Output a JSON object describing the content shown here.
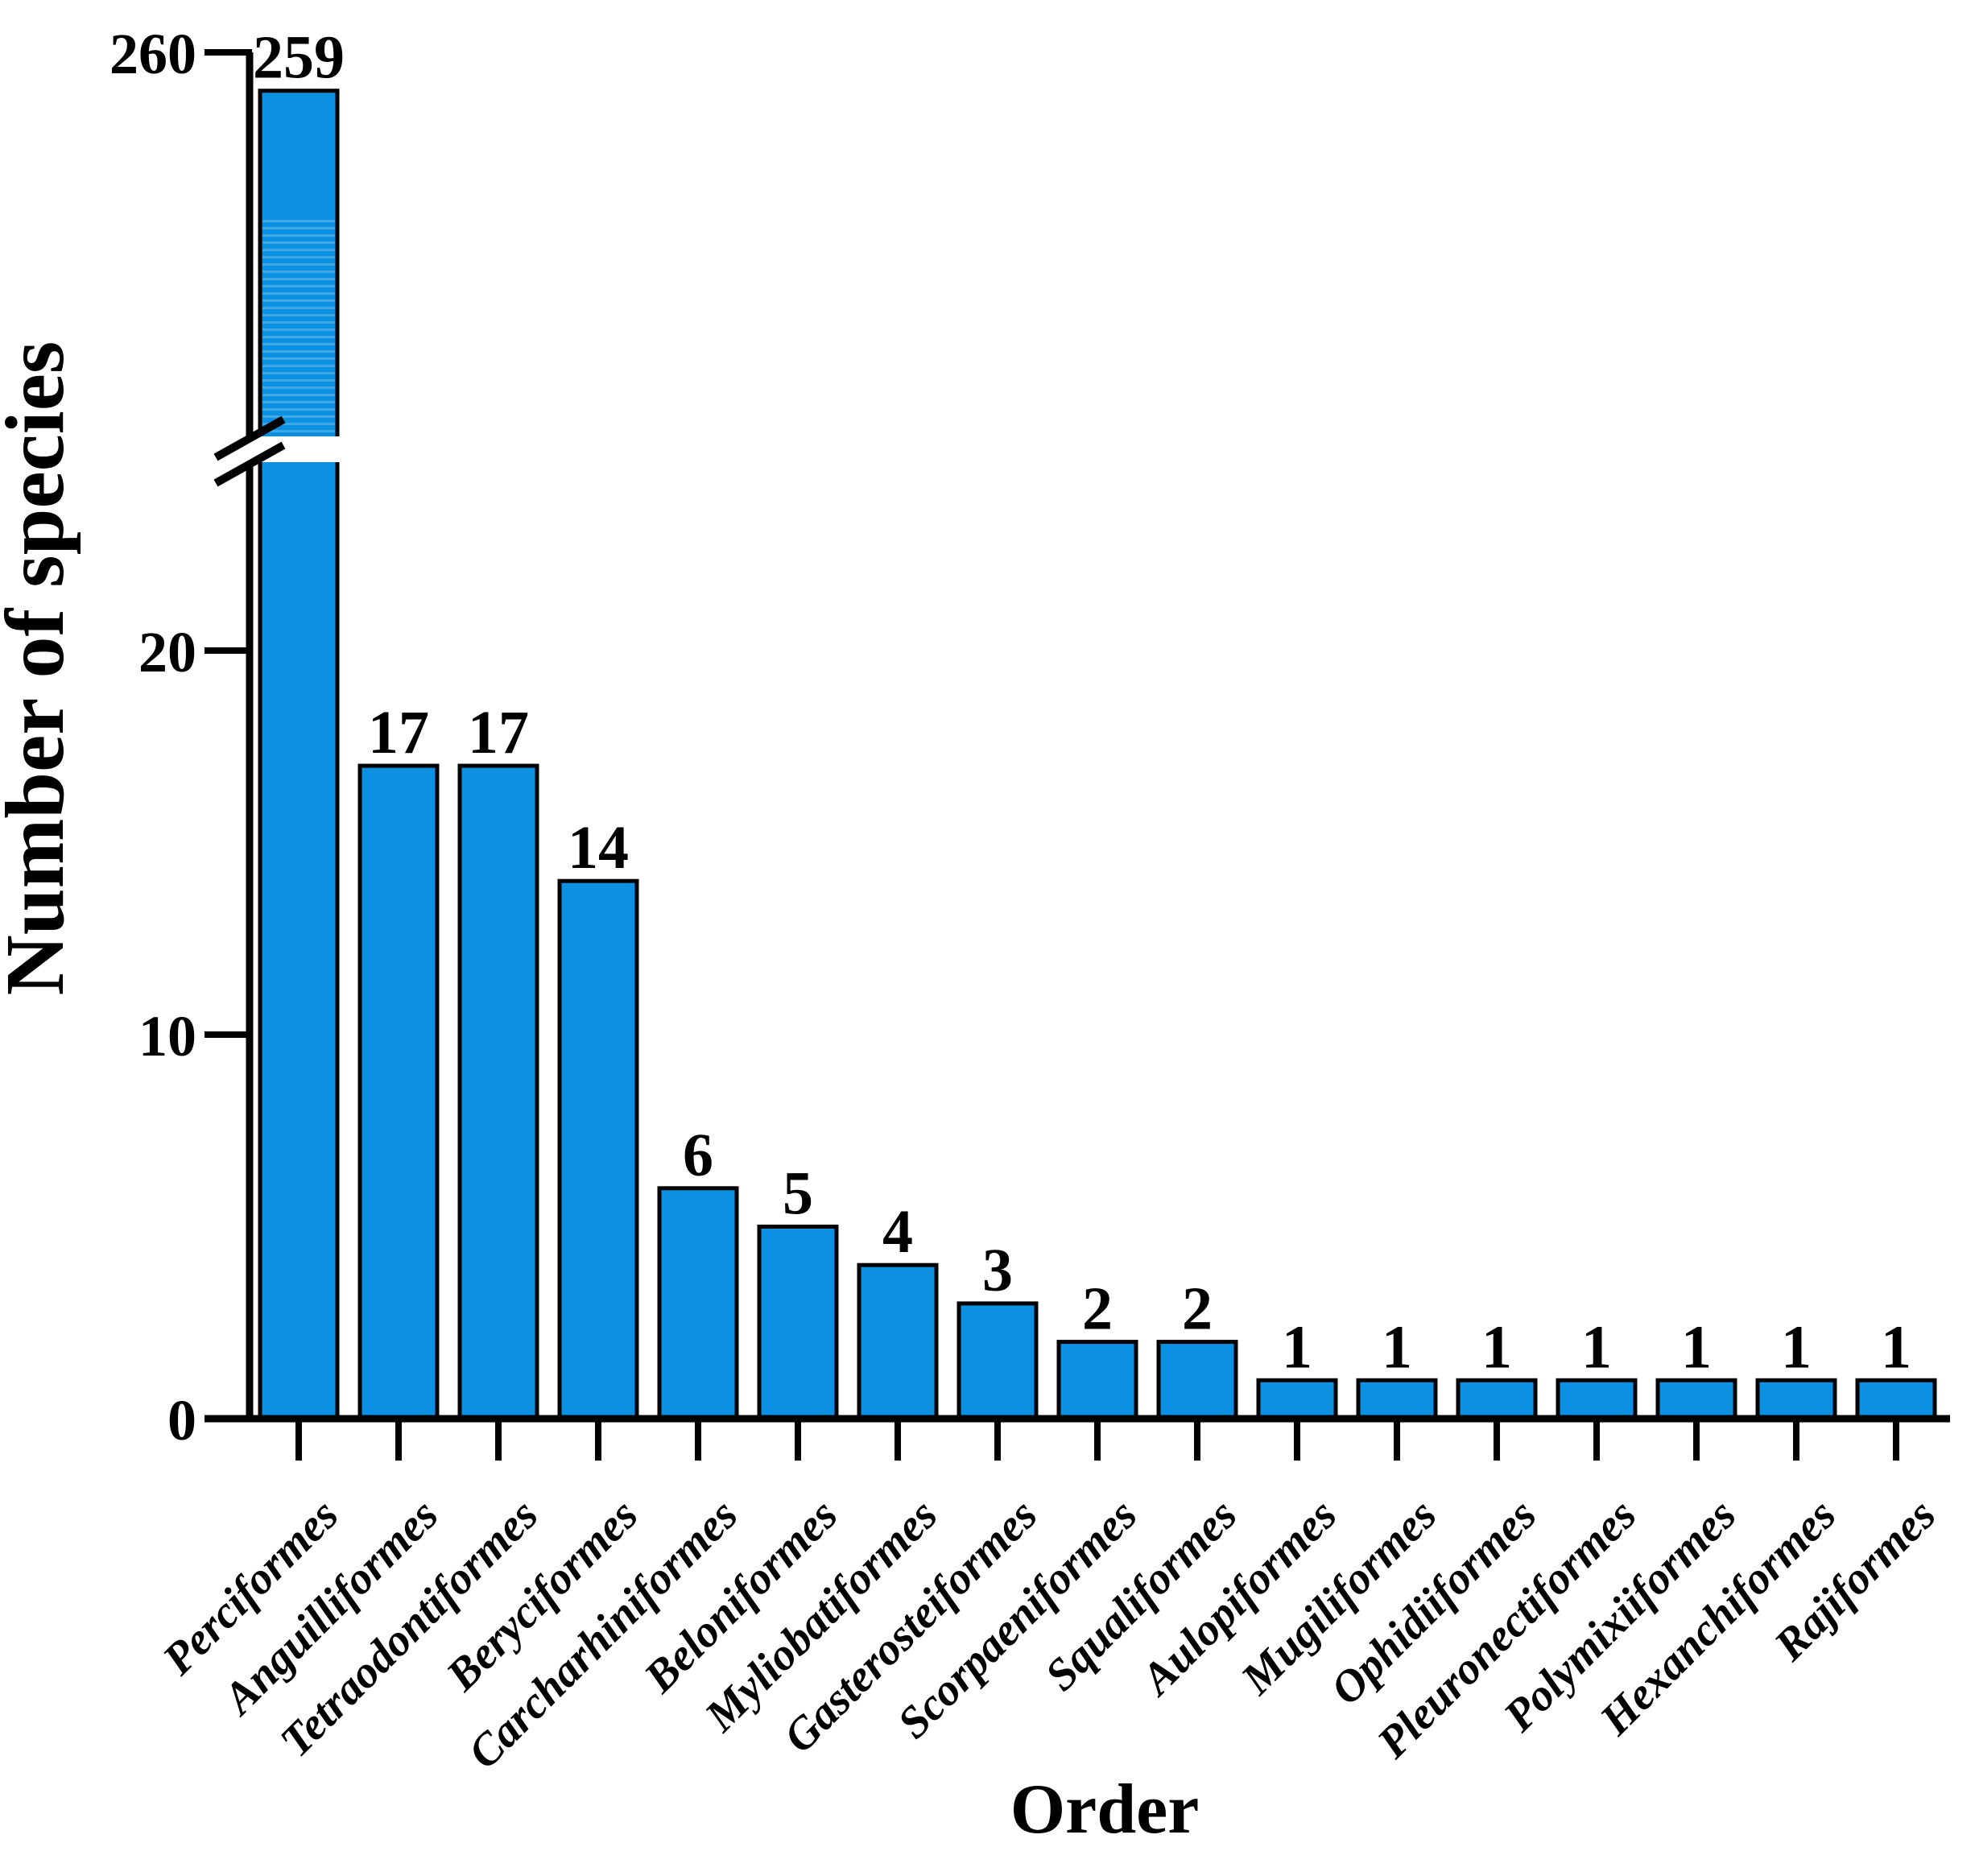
{
  "figure": {
    "background": "#ffffff"
  },
  "chart_data": {
    "type": "bar",
    "title": "",
    "xlabel": "Order",
    "ylabel": "Number of species",
    "categories": [
      "Perciformes",
      "Anguilliformes",
      "Tetraodontiformes",
      "Beryciformes",
      "Carcharhiniformes",
      "Beloniformes",
      "Myliobatiformes",
      "Gasterosteiformes",
      "Scorpaeniformes",
      "Squaliformes",
      "Aulopiformes",
      "Mugiliformes",
      "Ophidiiformes",
      "Pleuronectiformes",
      "Polymixiiformes",
      "Hexanchiformes",
      "Rajiformes"
    ],
    "values": [
      259,
      17,
      17,
      14,
      6,
      5,
      4,
      3,
      2,
      2,
      1,
      1,
      1,
      1,
      1,
      1,
      1
    ],
    "value_labels_shown": true,
    "bar_color": "#0b90e2",
    "bar_edge_color": "#000000",
    "axis_color": "#000000",
    "text_color": "#000000",
    "grid": false,
    "legend_position": "none",
    "y_axis": {
      "lower_ticks": [
        0,
        10,
        20
      ],
      "upper_ticks": [
        260
      ],
      "axis_break": true,
      "break_after_value": 20,
      "lower_range": [
        0,
        23
      ],
      "upper_range_top": 260
    }
  }
}
